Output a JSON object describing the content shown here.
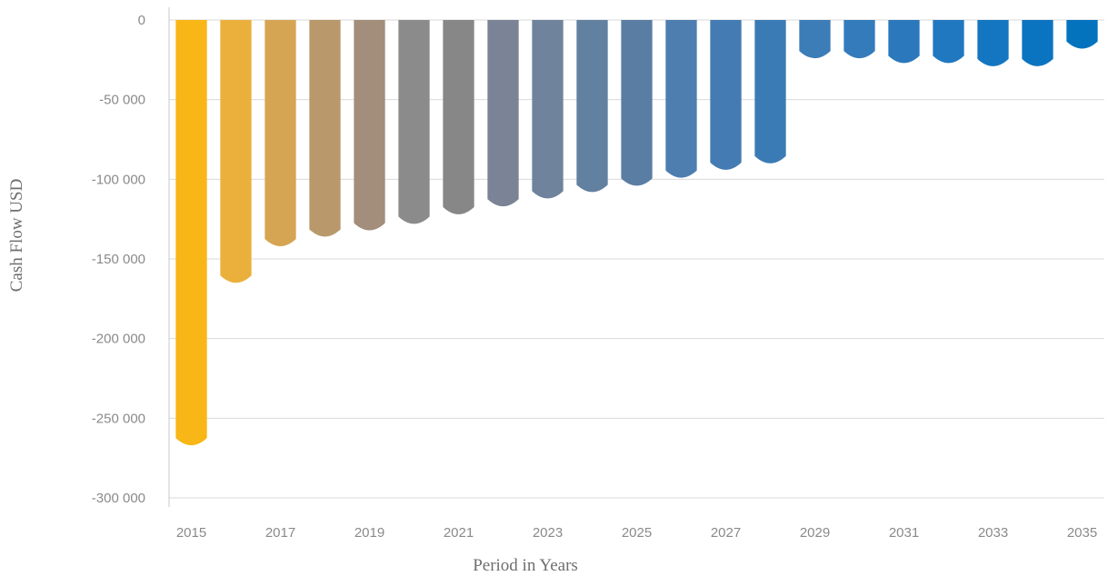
{
  "chart_data": {
    "type": "bar",
    "title": "",
    "xlabel": "Period in Years",
    "ylabel": "Cash Flow USD",
    "ylim": [
      -300000,
      0
    ],
    "y_ticks": [
      "0",
      "-50 000",
      "-100 000",
      "-150 000",
      "-200 000",
      "-250 000",
      "-300 000"
    ],
    "y_tick_values": [
      0,
      -50000,
      -100000,
      -150000,
      -200000,
      -250000,
      -300000
    ],
    "x_tick_labels": [
      "2015",
      "2017",
      "2019",
      "2021",
      "2023",
      "2025",
      "2027",
      "2029",
      "2031",
      "2033",
      "2035"
    ],
    "grid": true,
    "legend": "none",
    "categories": [
      "2015",
      "2016",
      "2017",
      "2018",
      "2019",
      "2020",
      "2021",
      "2022",
      "2023",
      "2024",
      "2025",
      "2026",
      "2027",
      "2028",
      "2029",
      "2030",
      "2031",
      "2032",
      "2033",
      "2034",
      "2035"
    ],
    "values": [
      -267000,
      -165000,
      -142000,
      -136000,
      -132000,
      -128000,
      -122000,
      -117000,
      -112000,
      -108000,
      -104000,
      -99000,
      -94000,
      -90000,
      -24000,
      -24000,
      -27000,
      -27000,
      -29000,
      -29000,
      -18000
    ],
    "colors": [
      "#f9b617",
      "#ebb03c",
      "#d6a553",
      "#b9996c",
      "#a28e7b",
      "#8b8b8b",
      "#868786",
      "#7a8496",
      "#70839c",
      "#62809f",
      "#5a7ea3",
      "#4e7db0",
      "#447bb3",
      "#3b7bb5",
      "#3c7cb7",
      "#337bbb",
      "#2b78bc",
      "#2078c0",
      "#1476c1",
      "#0b74c0",
      "#0473be"
    ]
  }
}
